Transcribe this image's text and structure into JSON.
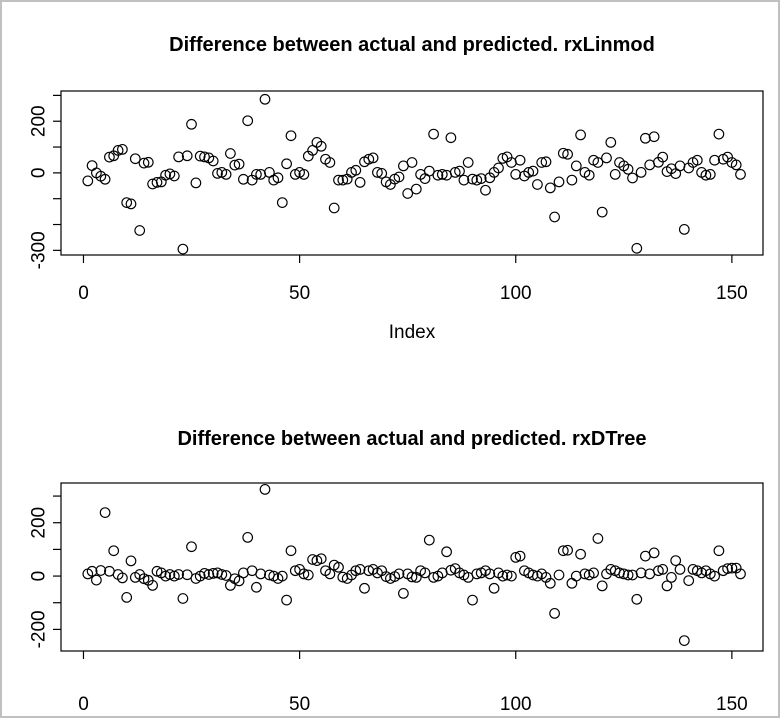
{
  "figure": {
    "background": "#ffffff",
    "frame_border_color": "#c0c0c0",
    "axis_color": "#000000",
    "point_color": "#000000",
    "marker": "open-circle"
  },
  "chart_data": [
    {
      "type": "scatter",
      "title": "Difference between actual and predicted. rxLinmod",
      "xlabel": "Index",
      "ylabel": "",
      "marker": "open-circle",
      "grid": false,
      "legend": "none",
      "x_is_index_from": 1,
      "n_points": 152,
      "x_ticks": [
        0,
        50,
        100,
        150
      ],
      "y_ticks": [
        300,
        200,
        100,
        0,
        -100,
        -200,
        -300
      ],
      "y_tick_labels": [
        "",
        "200",
        "",
        "0",
        "",
        "",
        "-300"
      ],
      "xlim": [
        -5.2,
        157.2
      ],
      "ylim": [
        -318,
        317
      ],
      "values": [
        -31,
        28,
        0,
        -13,
        -25,
        61,
        66,
        87,
        91,
        -115,
        -120,
        55,
        -223,
        38,
        41,
        -43,
        -37,
        -35,
        -9,
        -4,
        -12,
        62,
        -295,
        66,
        188,
        -39,
        65,
        62,
        58,
        46,
        -2,
        2,
        -6,
        75,
        30,
        34,
        -25,
        202,
        -28,
        -6,
        -6,
        285,
        2,
        -28,
        -19,
        -115,
        35,
        144,
        -6,
        2,
        -6,
        65,
        87,
        118,
        103,
        53,
        40,
        -136,
        -28,
        -28,
        -24,
        2,
        10,
        -37,
        43,
        53,
        58,
        2,
        -2,
        -35,
        -45,
        -24,
        -16,
        27,
        -80,
        40,
        -63,
        -6,
        -22,
        7,
        150,
        -9,
        -6,
        -9,
        136,
        2,
        7,
        -28,
        40,
        -24,
        -28,
        -22,
        -67,
        -19,
        2,
        19,
        56,
        62,
        40,
        -6,
        49,
        -12,
        2,
        7,
        -45,
        40,
        43,
        -58,
        -171,
        -35,
        76,
        72,
        -28,
        27,
        147,
        2,
        -9,
        49,
        40,
        -152,
        58,
        118,
        -6,
        40,
        27,
        14,
        -20,
        -292,
        2,
        134,
        31,
        140,
        41,
        61,
        5,
        16,
        -3,
        27,
        -219,
        19,
        40,
        49,
        2,
        -9,
        -6,
        49,
        150,
        53,
        61,
        40,
        31,
        -6
      ]
    },
    {
      "type": "scatter",
      "title": "Difference between actual and predicted. rxDTree",
      "xlabel": "",
      "ylabel": "",
      "marker": "open-circle",
      "grid": false,
      "legend": "none",
      "x_is_index_from": 1,
      "n_points": 152,
      "x_ticks": [
        0,
        50,
        100,
        150
      ],
      "y_ticks": [
        300,
        200,
        100,
        0,
        -100,
        -200
      ],
      "y_tick_labels": [
        "",
        "200",
        "",
        "0",
        "",
        "-200"
      ],
      "xlim": [
        -5.2,
        157.2
      ],
      "ylim": [
        -281,
        349
      ],
      "values": [
        8,
        18,
        -15,
        21,
        238,
        18,
        95,
        6,
        -7,
        -80,
        57,
        -5,
        6,
        -10,
        -16,
        -35,
        18,
        12,
        0,
        6,
        0,
        6,
        -84,
        5,
        110,
        -9,
        0,
        10,
        6,
        10,
        12,
        6,
        2,
        -35,
        -10,
        -18,
        12,
        145,
        20,
        -42,
        8,
        325,
        4,
        0,
        -9,
        0,
        -90,
        95,
        20,
        25,
        8,
        4,
        62,
        58,
        65,
        20,
        8,
        41,
        33,
        -4,
        -9,
        4,
        20,
        25,
        -46,
        20,
        25,
        12,
        20,
        -2,
        -9,
        -2,
        8,
        -65,
        8,
        -3,
        -5,
        20,
        12,
        135,
        -5,
        0,
        12,
        91,
        22,
        28,
        12,
        4,
        -5,
        -90,
        8,
        12,
        20,
        8,
        -46,
        12,
        0,
        4,
        0,
        70,
        75,
        20,
        12,
        4,
        0,
        8,
        -5,
        -27,
        -140,
        4,
        95,
        97,
        -27,
        0,
        82,
        8,
        4,
        12,
        141,
        -37,
        8,
        25,
        20,
        12,
        8,
        4,
        4,
        -87,
        12,
        75,
        8,
        87,
        20,
        25,
        -37,
        -5,
        58,
        25,
        -242,
        -17,
        25,
        20,
        12,
        20,
        8,
        0,
        95,
        20,
        28,
        30,
        30,
        8
      ]
    }
  ]
}
